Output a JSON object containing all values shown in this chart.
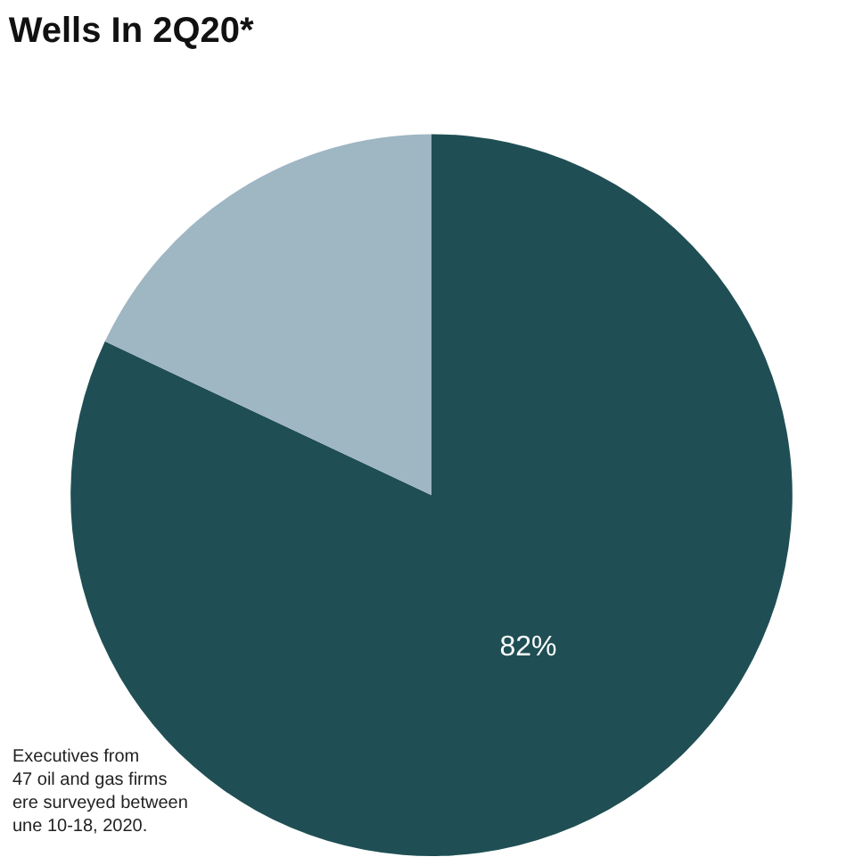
{
  "chart_data": {
    "type": "pie",
    "title": "Wells In 2Q20*",
    "categories": [
      null,
      null
    ],
    "values": [
      82,
      18
    ],
    "colors": [
      "#1f4f54",
      "#9fb6c3"
    ],
    "value_labels": [
      "82%",
      null
    ],
    "legend": false,
    "annotations": [
      "Executives from\n47 oil and gas firms\nere surveyed between\nune 10-18, 2020."
    ]
  }
}
